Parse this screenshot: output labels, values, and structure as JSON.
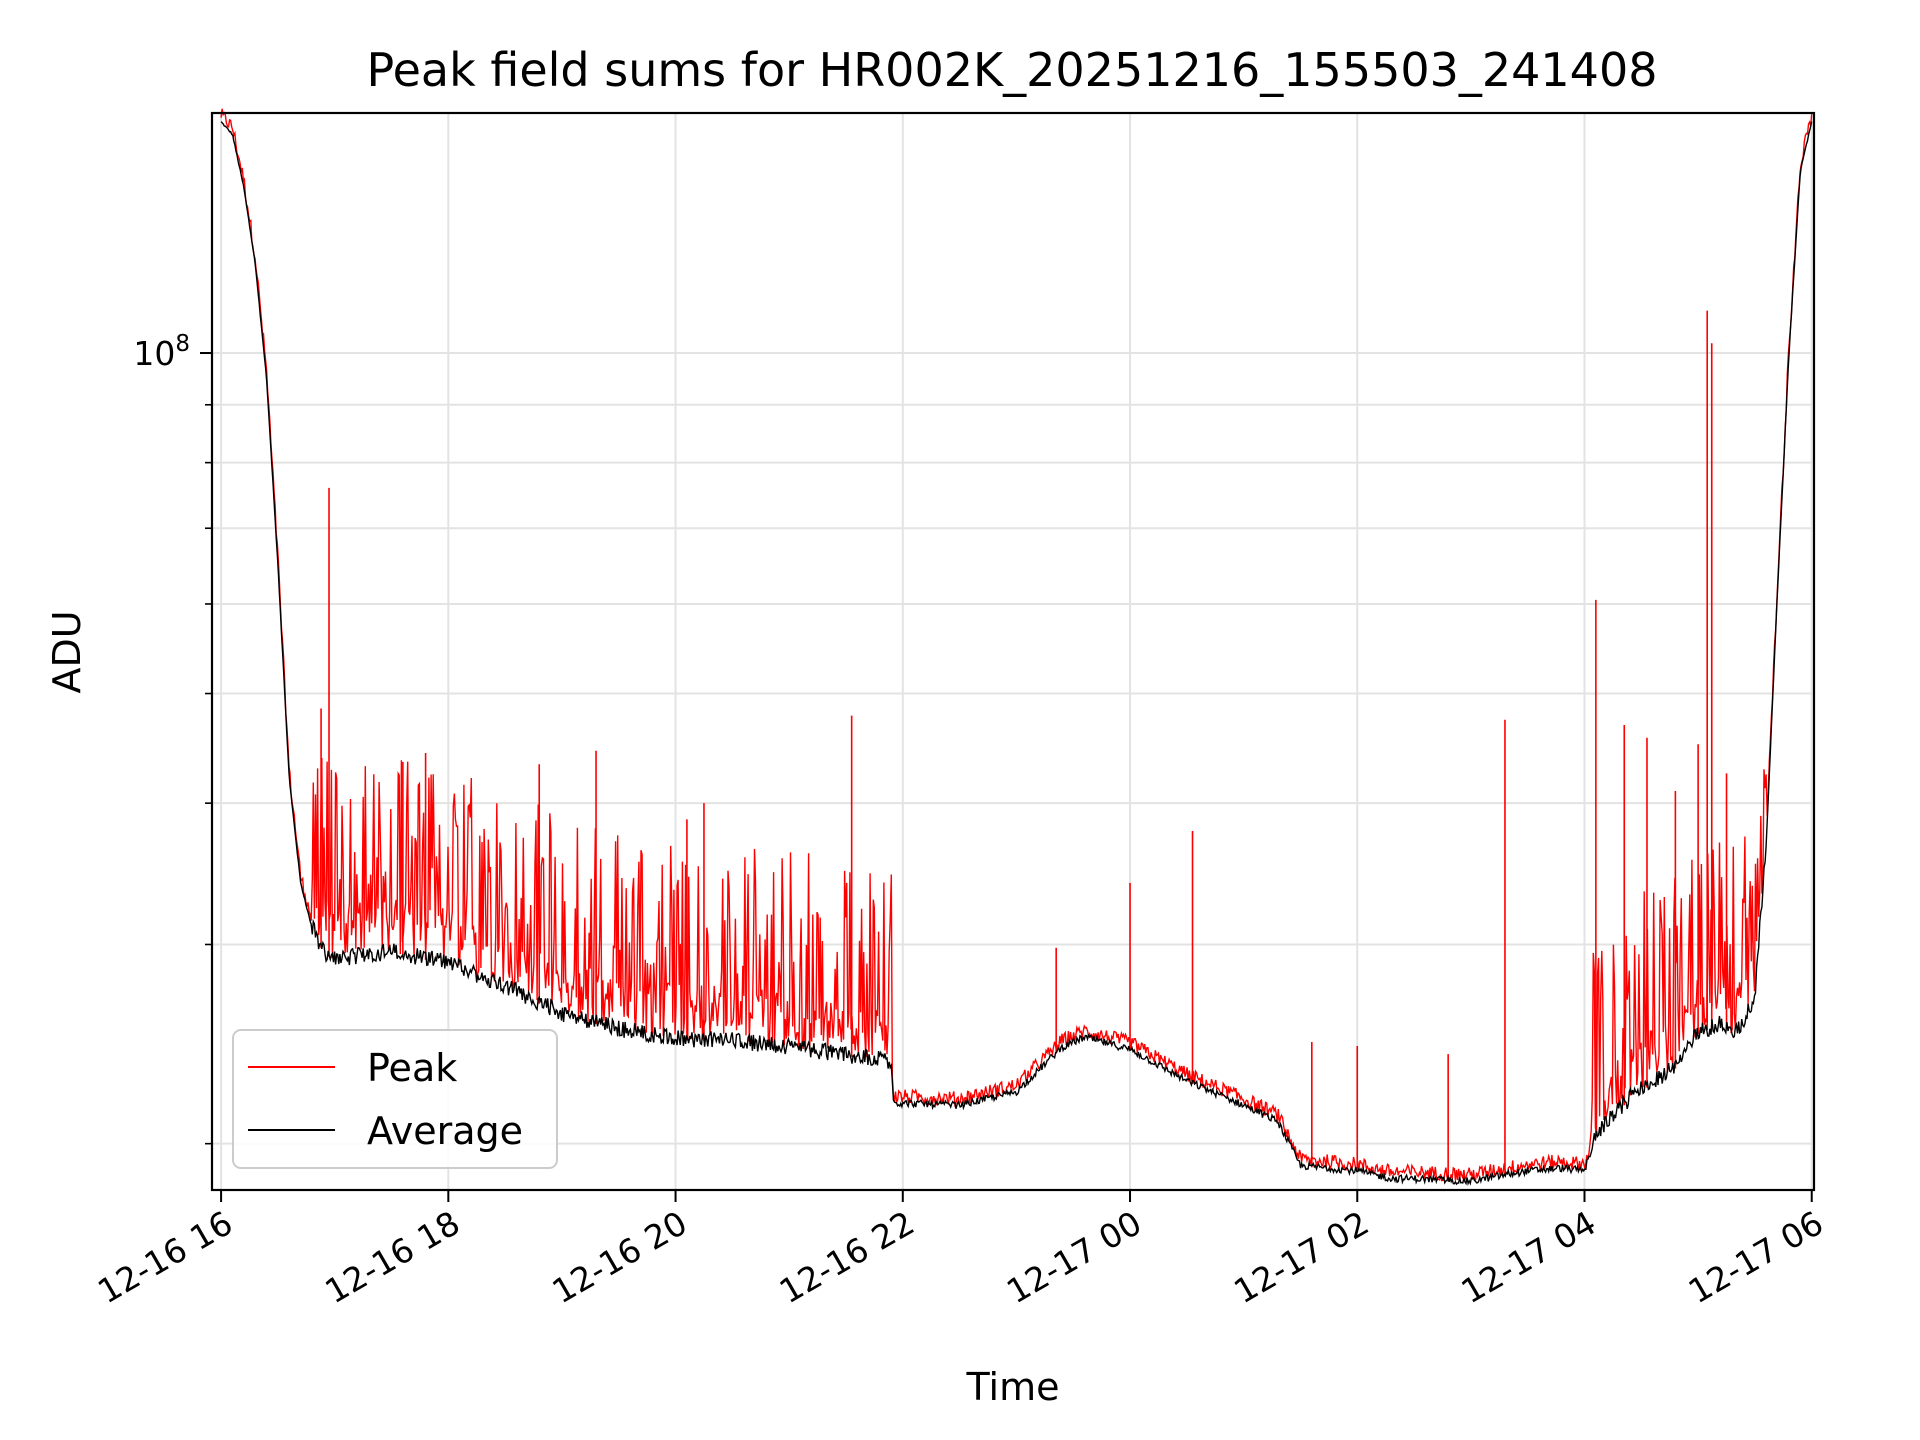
{
  "chart_data": {
    "type": "line",
    "title": "Peak field sums for HR002K_20251216_155503_241408",
    "xlabel": "Time",
    "ylabel": "ADU",
    "yscale": "log",
    "x_unit": "hours since 12-16 16:00",
    "xlim": [
      -0.08,
      14.02
    ],
    "ylim": [
      18200000,
      163000000
    ],
    "xticks": [
      {
        "value": 0,
        "label": "12-16 16"
      },
      {
        "value": 2,
        "label": "12-16 18"
      },
      {
        "value": 4,
        "label": "12-16 20"
      },
      {
        "value": 6,
        "label": "12-16 22"
      },
      {
        "value": 8,
        "label": "12-17 00"
      },
      {
        "value": 10,
        "label": "12-17 02"
      },
      {
        "value": 12,
        "label": "12-17 04"
      },
      {
        "value": 14,
        "label": "12-17 06"
      }
    ],
    "yticks_major": [
      {
        "value": 100000000,
        "label": "10^8"
      }
    ],
    "yticks_minor": [
      20000000,
      30000000,
      40000000,
      50000000,
      60000000,
      70000000,
      80000000,
      90000000,
      200000000
    ],
    "grid": true,
    "legend": {
      "position": "lower-left",
      "entries": [
        "Peak",
        "Average"
      ]
    },
    "series": [
      {
        "name": "Average",
        "color": "#000000",
        "x": [
          0.0,
          0.1,
          0.2,
          0.3,
          0.4,
          0.5,
          0.6,
          0.7,
          0.8,
          0.9,
          1.0,
          1.5,
          2.0,
          2.5,
          3.0,
          3.5,
          4.0,
          4.5,
          5.0,
          5.5,
          5.9,
          5.92,
          6.5,
          7.0,
          7.4,
          7.6,
          8.0,
          8.5,
          9.0,
          9.3,
          9.5,
          10.0,
          10.3,
          10.5,
          11.0,
          11.5,
          11.8,
          12.0,
          12.1,
          12.4,
          12.8,
          13.0,
          13.2,
          13.3,
          13.4,
          13.5,
          13.6,
          13.7,
          13.8,
          13.9,
          14.0
        ],
        "y": [
          160000000,
          156000000,
          140000000,
          120000000,
          95000000,
          65000000,
          42000000,
          34000000,
          31000000,
          29500000,
          29000000,
          29500000,
          28800000,
          27500000,
          26000000,
          25200000,
          24700000,
          24600000,
          24300000,
          23900000,
          23600000,
          21700000,
          21600000,
          22200000,
          24300000,
          24800000,
          24200000,
          22700000,
          21600000,
          20900000,
          19100000,
          18900000,
          18600000,
          18600000,
          18500000,
          18900000,
          19000000,
          18900000,
          20300000,
          21900000,
          23300000,
          25000000,
          25500000,
          25000000,
          25500000,
          27000000,
          37000000,
          62000000,
          100000000,
          145000000,
          160000000
        ]
      },
      {
        "name": "Peak",
        "color": "#ff0000",
        "spikes": [
          {
            "x": 0.35,
            "y": 107000000
          },
          {
            "x": 0.88,
            "y": 48500000
          },
          {
            "x": 0.95,
            "y": 76000000
          },
          {
            "x": 1.6,
            "y": 43500000
          },
          {
            "x": 1.8,
            "y": 44300000
          },
          {
            "x": 2.8,
            "y": 43300000
          },
          {
            "x": 3.3,
            "y": 44500000
          },
          {
            "x": 4.1,
            "y": 38700000
          },
          {
            "x": 4.25,
            "y": 40000000
          },
          {
            "x": 5.55,
            "y": 47800000
          },
          {
            "x": 7.35,
            "y": 29800000
          },
          {
            "x": 8.0,
            "y": 34000000
          },
          {
            "x": 8.55,
            "y": 37800000
          },
          {
            "x": 9.6,
            "y": 24600000
          },
          {
            "x": 10.0,
            "y": 24400000
          },
          {
            "x": 10.8,
            "y": 24000000
          },
          {
            "x": 11.3,
            "y": 47400000
          },
          {
            "x": 12.1,
            "y": 60500000
          },
          {
            "x": 12.35,
            "y": 46900000
          },
          {
            "x": 12.55,
            "y": 45700000
          },
          {
            "x": 12.8,
            "y": 41000000
          },
          {
            "x": 13.0,
            "y": 45100000
          },
          {
            "x": 13.08,
            "y": 109000000
          },
          {
            "x": 13.12,
            "y": 102000000
          },
          {
            "x": 13.25,
            "y": 42500000
          }
        ]
      }
    ]
  }
}
